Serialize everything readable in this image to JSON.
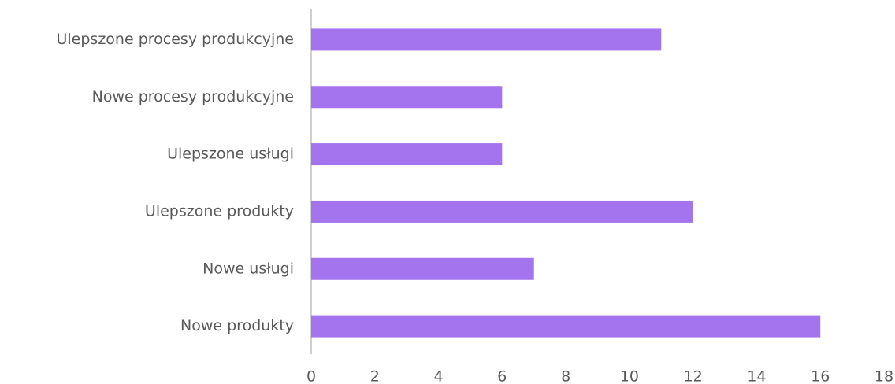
{
  "chart_data": {
    "type": "bar",
    "orientation": "horizontal",
    "categories": [
      "Ulepszone procesy produkcyjne",
      "Nowe procesy produkcyjne",
      "Ulepszone usługi",
      "Ulepszone produkty",
      "Nowe usługi",
      "Nowe produkty"
    ],
    "values": [
      11,
      6,
      6,
      12,
      7,
      16
    ],
    "color": "#a374ee",
    "xlim": [
      0,
      18
    ],
    "xticks": [
      0,
      2,
      4,
      6,
      8,
      10,
      12,
      14,
      16,
      18
    ],
    "grid": false
  }
}
